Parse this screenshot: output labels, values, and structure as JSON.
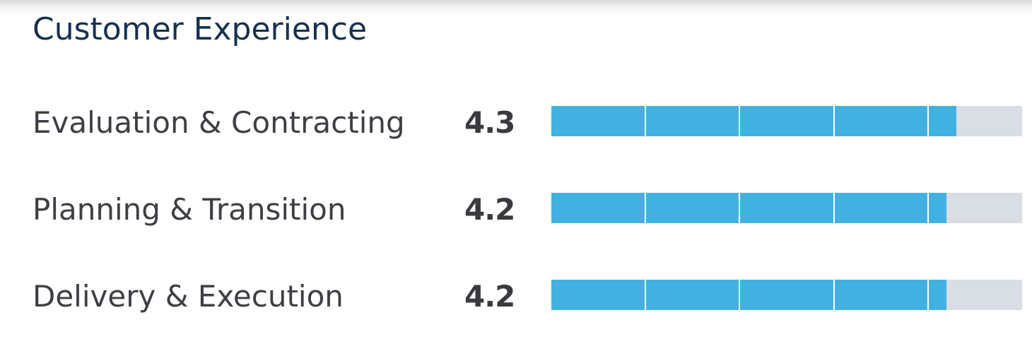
{
  "section": {
    "title": "Customer Experience"
  },
  "scale_max": 5,
  "colors": {
    "fill": "#42b1e1",
    "track": "#d8dee3",
    "title": "#16304f"
  },
  "ratings": [
    {
      "label": "Evaluation & Contracting",
      "score": "4.3",
      "value": 4.3
    },
    {
      "label": "Planning & Transition",
      "score": "4.2",
      "value": 4.2
    },
    {
      "label": "Delivery & Execution",
      "score": "4.2",
      "value": 4.2
    }
  ]
}
